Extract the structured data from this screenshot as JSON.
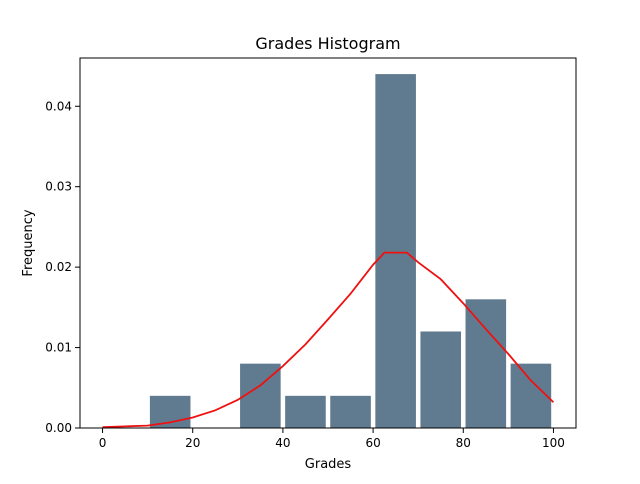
{
  "chart_data": {
    "type": "bar",
    "title": "Grades Histogram",
    "xlabel": "Grades",
    "ylabel": "Frequency",
    "xlim": [
      -5,
      105
    ],
    "ylim": [
      0,
      0.046
    ],
    "x_ticks": [
      0,
      20,
      40,
      60,
      80,
      100
    ],
    "x_tick_labels": [
      "0",
      "20",
      "40",
      "60",
      "80",
      "100"
    ],
    "y_ticks": [
      0.0,
      0.01,
      0.02,
      0.03,
      0.04
    ],
    "y_tick_labels": [
      "0.00",
      "0.01",
      "0.02",
      "0.03",
      "0.04"
    ],
    "grid": false,
    "bar_color": "#607b8f",
    "curve_color": "#ee1111",
    "bins": [
      {
        "start": 0,
        "end": 10,
        "value": 0.0
      },
      {
        "start": 10,
        "end": 20,
        "value": 0.004
      },
      {
        "start": 20,
        "end": 30,
        "value": 0.0
      },
      {
        "start": 30,
        "end": 40,
        "value": 0.008
      },
      {
        "start": 40,
        "end": 50,
        "value": 0.004
      },
      {
        "start": 50,
        "end": 60,
        "value": 0.004
      },
      {
        "start": 60,
        "end": 70,
        "value": 0.044
      },
      {
        "start": 70,
        "end": 80,
        "value": 0.012
      },
      {
        "start": 80,
        "end": 90,
        "value": 0.016
      },
      {
        "start": 90,
        "end": 100,
        "value": 0.008
      }
    ],
    "bar_width_fraction": 0.9,
    "curve": {
      "x": [
        0,
        5,
        10,
        15,
        20,
        25,
        30,
        35,
        40,
        45,
        50,
        55,
        60,
        62.5,
        67.5,
        70,
        75,
        80,
        85,
        90,
        95,
        100
      ],
      "y": [
        0.0001,
        0.0002,
        0.0003,
        0.0007,
        0.0013,
        0.0022,
        0.0035,
        0.0053,
        0.0077,
        0.0104,
        0.0135,
        0.0167,
        0.0203,
        0.0218,
        0.0218,
        0.0206,
        0.0185,
        0.0155,
        0.0123,
        0.0092,
        0.0059,
        0.0032
      ]
    }
  }
}
